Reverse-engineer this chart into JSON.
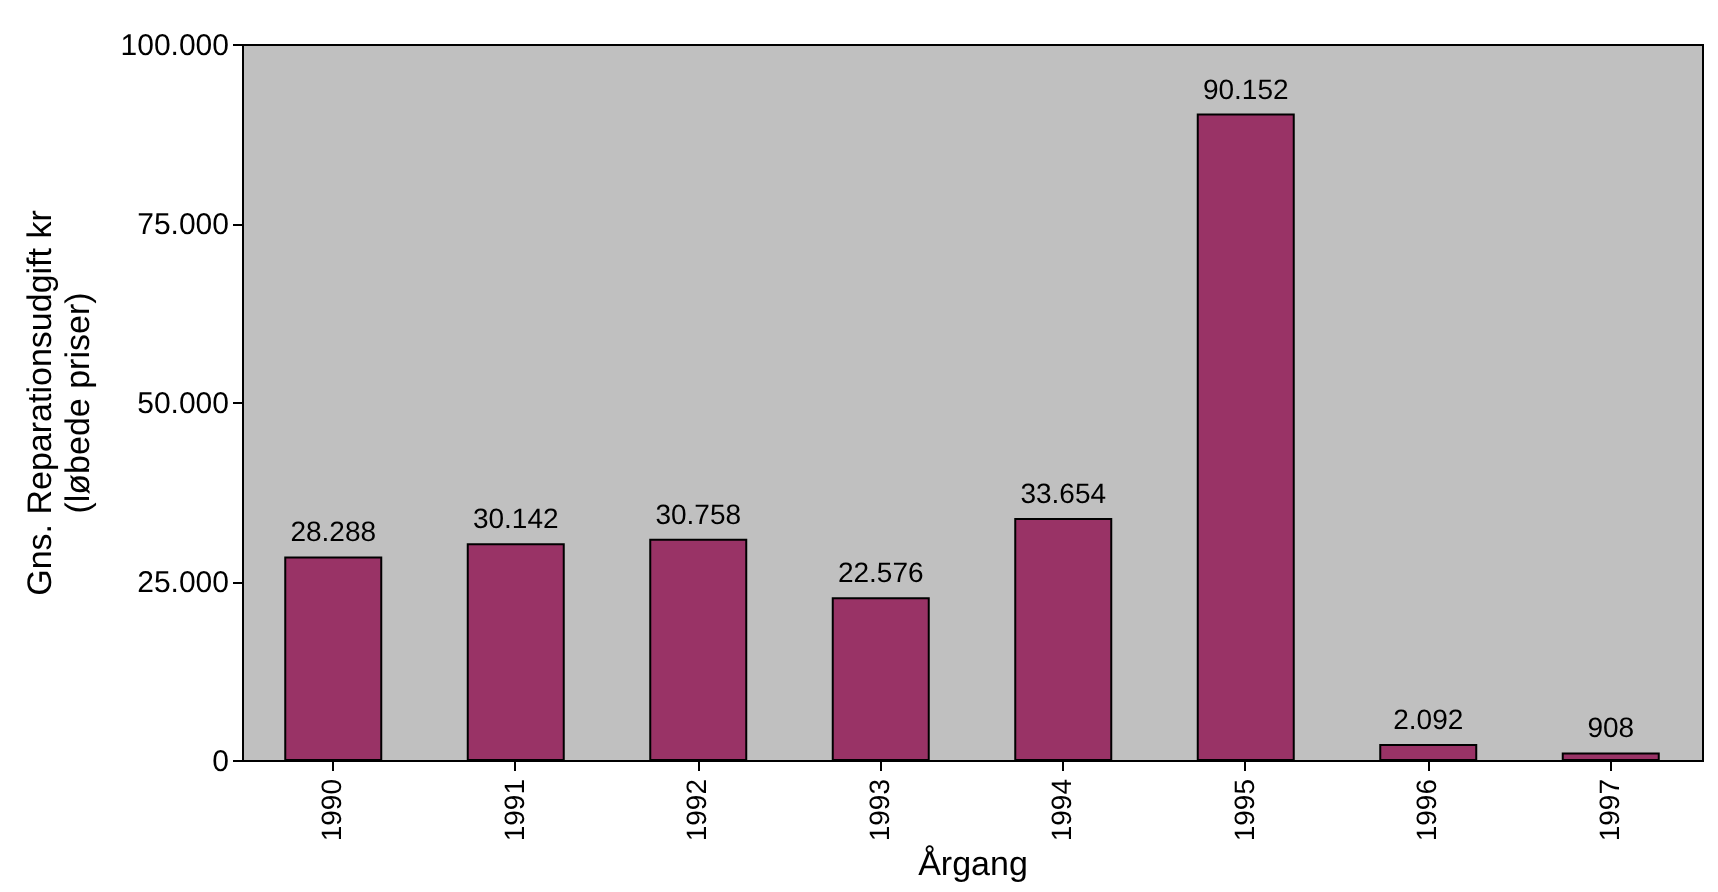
{
  "chart_data": {
    "type": "bar",
    "xlabel": "Årgang",
    "ylabel": "Gns. Reparationsudgift kr (løbede priser)",
    "categories": [
      "1990",
      "1991",
      "1992",
      "1993",
      "1994",
      "1995",
      "1996",
      "1997"
    ],
    "values": [
      28288,
      30142,
      30758,
      22576,
      33654,
      90152,
      2092,
      908
    ],
    "value_labels": [
      "28.288",
      "30.142",
      "30.758",
      "22.576",
      "33.654",
      "90.152",
      "2.092",
      "908"
    ],
    "color": "#993366",
    "ylim": [
      0,
      100000
    ],
    "yticks": [
      {
        "value": 0,
        "label": "0"
      },
      {
        "value": 25000,
        "label": "25.000"
      },
      {
        "value": 50000,
        "label": "50.000"
      },
      {
        "value": 75000,
        "label": "75.000"
      },
      {
        "value": 100000,
        "label": "100.000"
      }
    ],
    "grid": false
  }
}
